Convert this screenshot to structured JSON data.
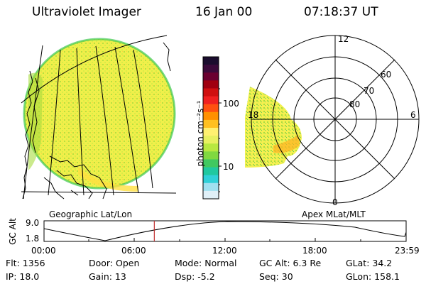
{
  "header": {
    "instrument": "Ultraviolet Imager",
    "date": "16 Jan 00",
    "time": "07:18:37 UT"
  },
  "colorbar": {
    "label": "photon cm⁻²s⁻¹",
    "ticks": [
      "100",
      "10"
    ],
    "colors": [
      "#1a0d2e",
      "#3a0a3a",
      "#6a0030",
      "#a00010",
      "#d01010",
      "#f02020",
      "#ff5010",
      "#ff9000",
      "#ffc020",
      "#fff070",
      "#e8f060",
      "#b8e840",
      "#80d840",
      "#40c860",
      "#20c8a0",
      "#30d0d8",
      "#a0e0f0",
      "#e0f0f8"
    ]
  },
  "panels": {
    "left_caption": "Geographic Lat/Lon",
    "right_caption": "Apex MLat/MLT",
    "polar_labels": {
      "top": "12",
      "bottom": "0",
      "left": "18",
      "right": "6",
      "r80": "80",
      "r70": "70",
      "r60": "60"
    }
  },
  "altitude_plot": {
    "ylabel": "GC Alt",
    "yticks": [
      "9.0",
      "1.8"
    ],
    "xticks": [
      "00:00",
      "06:00",
      "12:00",
      "18:00",
      "23:59"
    ],
    "current_time_fraction": 0.3046
  },
  "info": {
    "flt": "Flt: 1356",
    "ip": "IP: 18.0",
    "door": "Door: Open",
    "gain": "Gain: 13",
    "mode": "Mode: Normal",
    "dsp": "Dsp:   -5.2",
    "gcalt": "GC Alt: 6.3 Re",
    "seq": "Seq: 30",
    "glat": "GLat:  34.2",
    "glon": "GLon: 158.1"
  }
}
